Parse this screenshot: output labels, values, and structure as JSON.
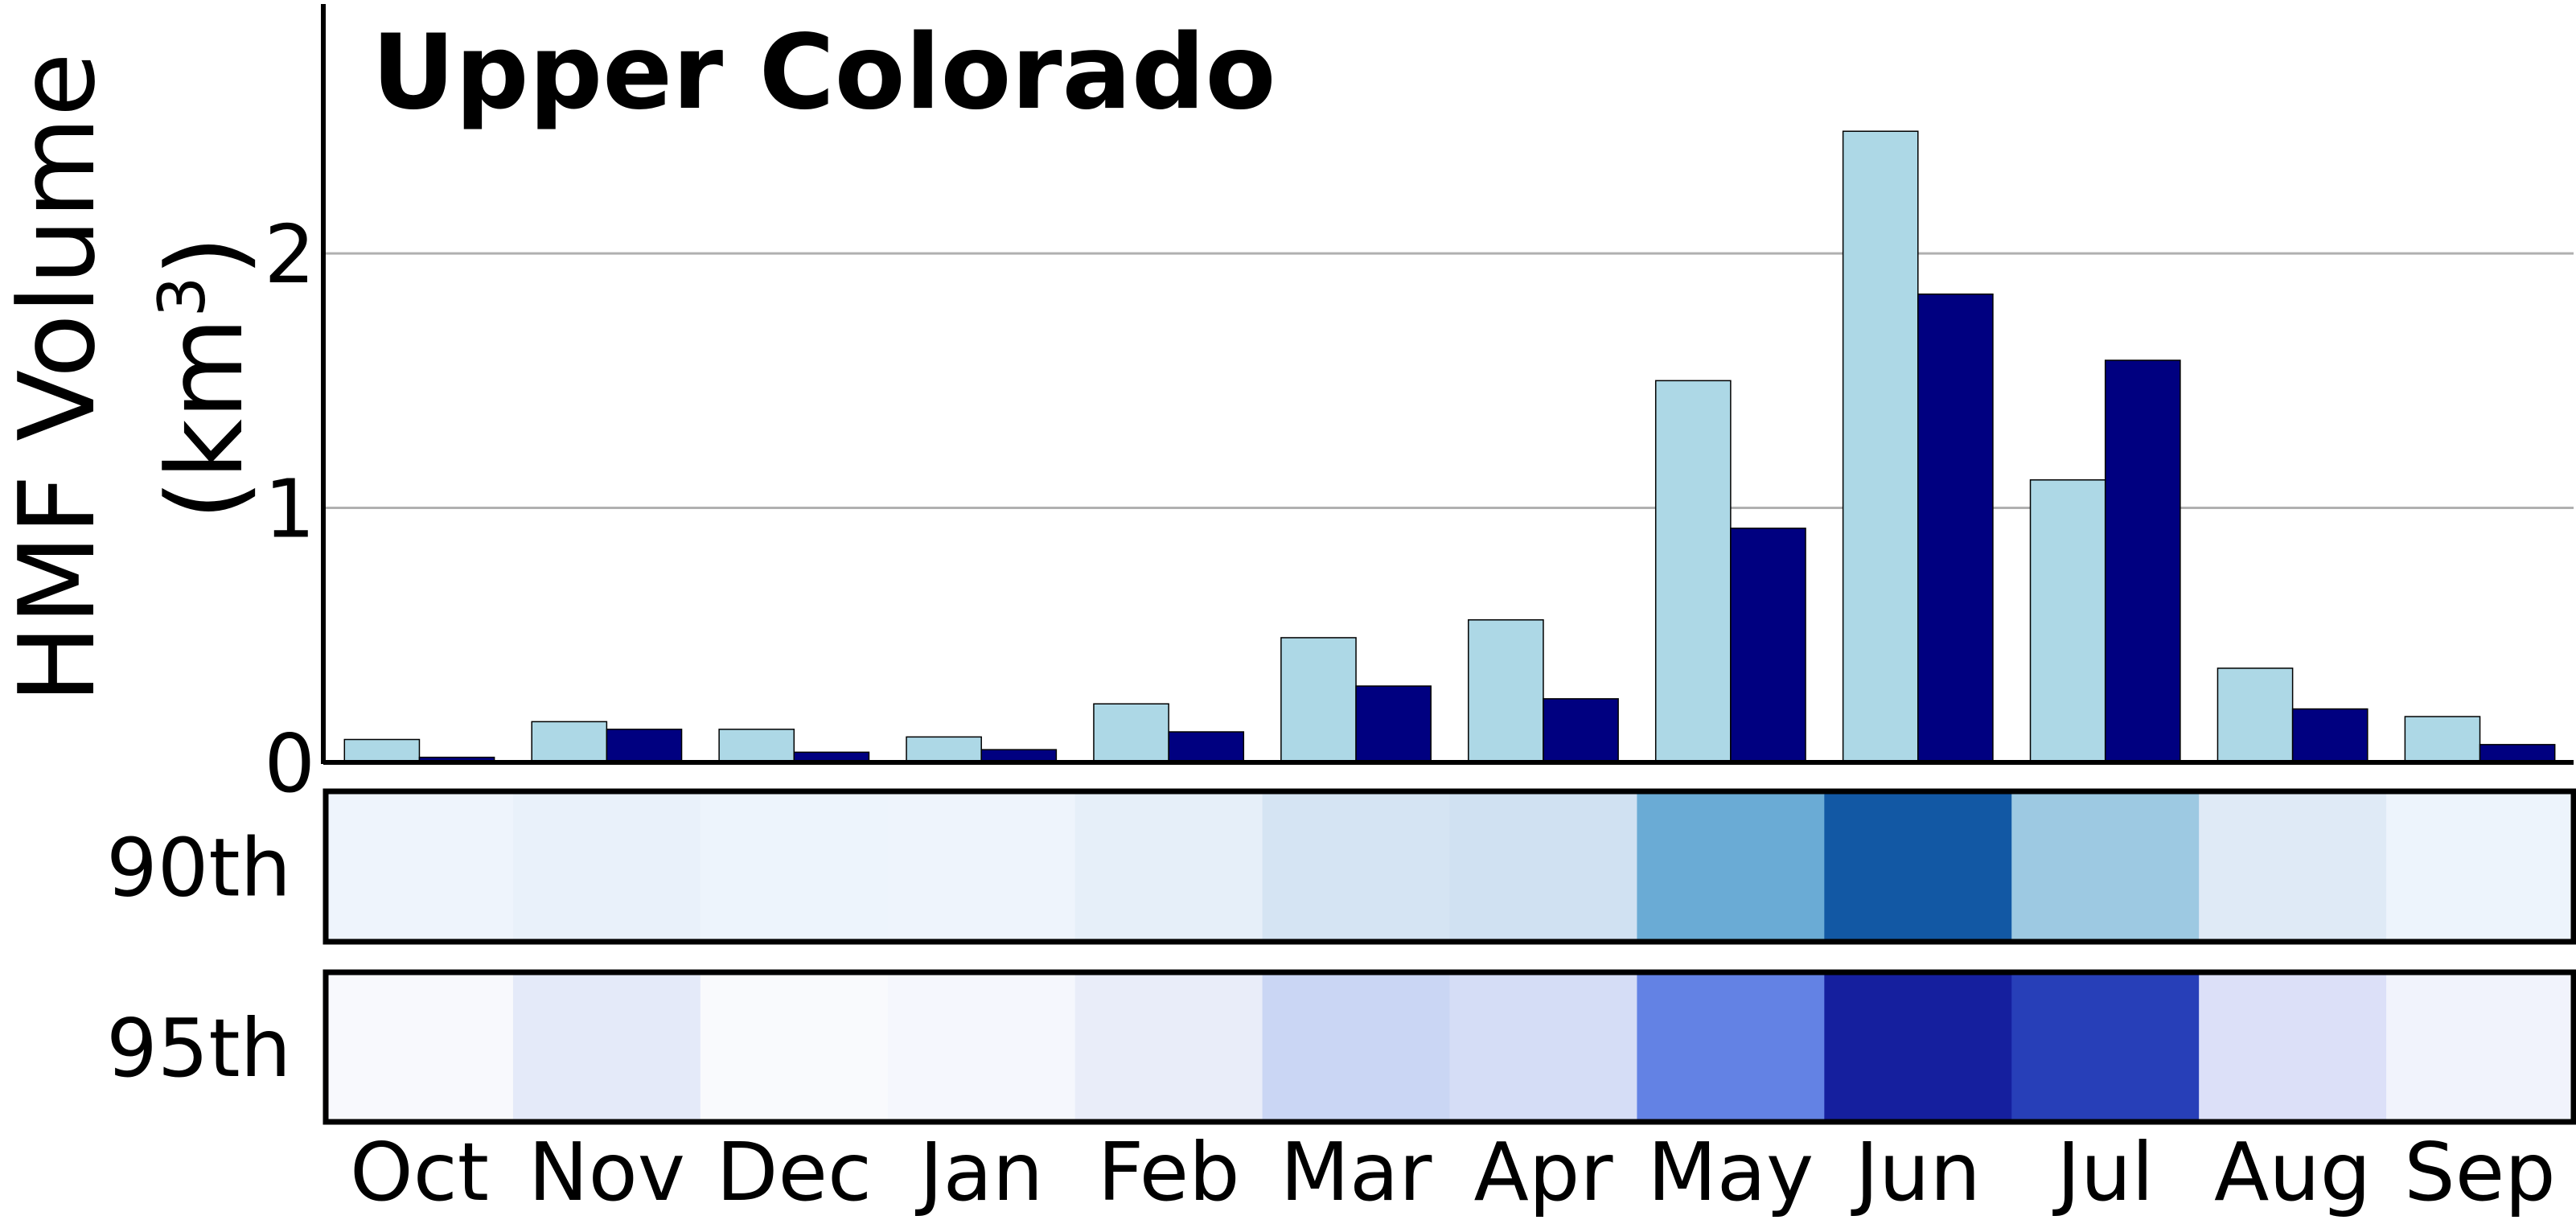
{
  "chart_data": {
    "type": "bar",
    "title": "Upper Colorado",
    "ylabel": "HMF Volume",
    "ylabel_unit": "(km",
    "ylabel_unit_exp": "3",
    "ylabel_unit_close": ")",
    "ylim": [
      0,
      2.98
    ],
    "yticks": [
      {
        "value": 0,
        "label": "0"
      },
      {
        "value": 1,
        "label": "1"
      },
      {
        "value": 2,
        "label": "2"
      }
    ],
    "grid": "horizontal",
    "categories": [
      "Oct",
      "Nov",
      "Dec",
      "Jan",
      "Feb",
      "Mar",
      "Apr",
      "May",
      "Jun",
      "Jul",
      "Aug",
      "Sep"
    ],
    "series": [
      {
        "color": "#add8e6",
        "values": [
          0.09,
          0.16,
          0.13,
          0.1,
          0.23,
          0.49,
          0.56,
          1.5,
          2.48,
          1.11,
          0.37,
          0.18
        ]
      },
      {
        "color": "#000080",
        "values": [
          0.02,
          0.13,
          0.04,
          0.05,
          0.12,
          0.3,
          0.25,
          0.92,
          1.84,
          1.58,
          0.21,
          0.07
        ]
      }
    ],
    "heatmap_rows": [
      {
        "label": "90th",
        "colors": [
          "#eef4fc",
          "#e9f1fa",
          "#edf4fc",
          "#eef4fc",
          "#e6eff9",
          "#d5e4f3",
          "#d0e1f2",
          "#6aabd5",
          "#1258a4",
          "#9dc9e2",
          "#dfeaf6",
          "#edf4fc"
        ]
      },
      {
        "label": "95th",
        "colors": [
          "#f8f9fd",
          "#e4eaf9",
          "#f9fafd",
          "#f5f7fd",
          "#e9edf9",
          "#cad6f4",
          "#d5ddf6",
          "#6382e4",
          "#151f9e",
          "#273fb8",
          "#dce0f8",
          "#f1f3fc"
        ]
      }
    ]
  }
}
